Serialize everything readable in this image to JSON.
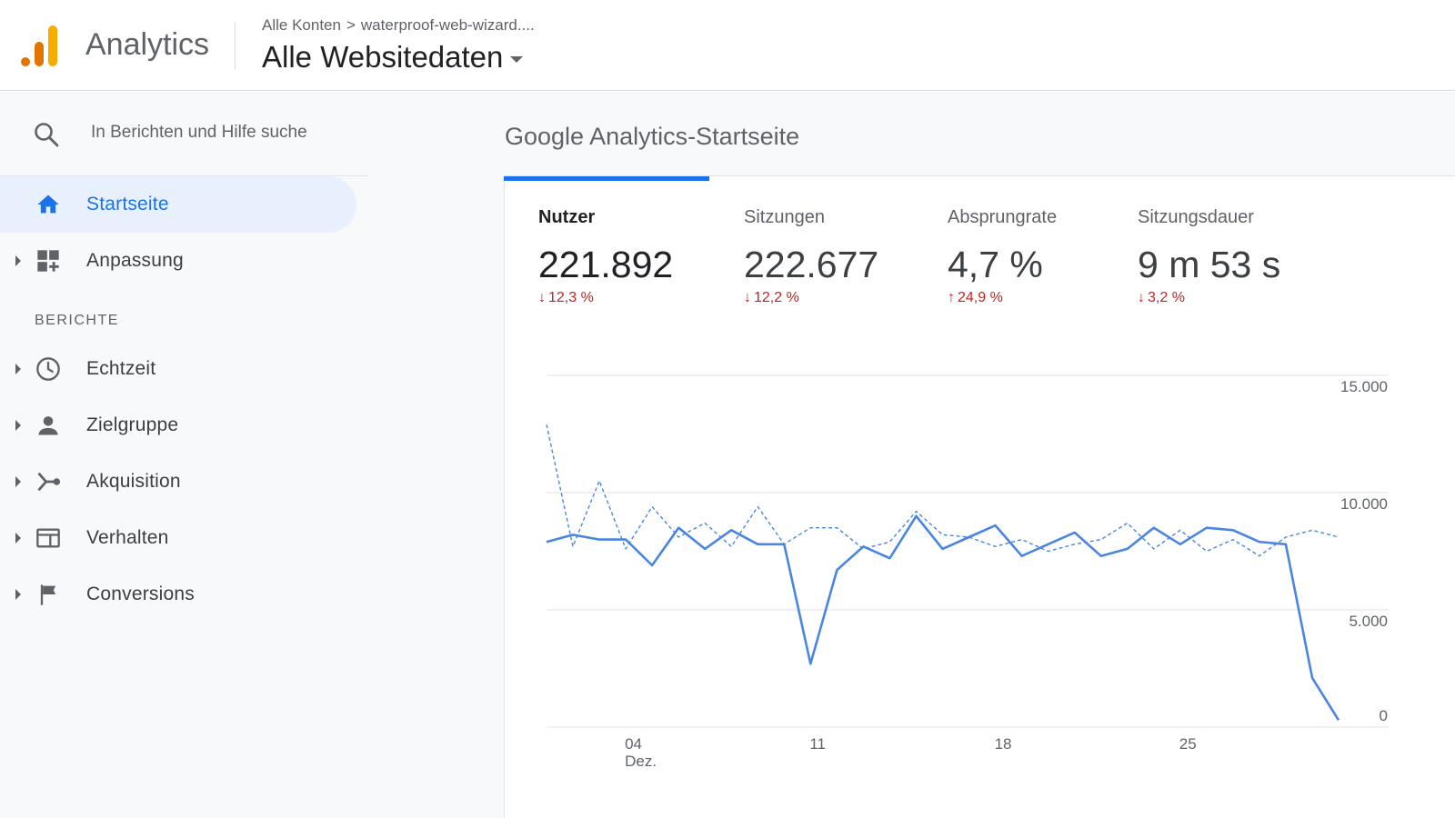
{
  "header": {
    "app_title": "Analytics",
    "breadcrumb": {
      "account": "Alle Konten",
      "separator": ">",
      "property": "waterproof-web-wizard...."
    },
    "view_title": "Alle Websitedaten"
  },
  "sidebar": {
    "search_placeholder": "In Berichten und Hilfe suche",
    "home": {
      "label": "Startseite",
      "icon": "home-icon"
    },
    "customization": {
      "label": "Anpassung",
      "icon": "dashboard-icon"
    },
    "reports_section": "BERICHTE",
    "reports": [
      {
        "label": "Echtzeit",
        "icon": "clock-icon"
      },
      {
        "label": "Zielgruppe",
        "icon": "person-icon"
      },
      {
        "label": "Akquisition",
        "icon": "acquisition-icon"
      },
      {
        "label": "Verhalten",
        "icon": "behavior-icon"
      },
      {
        "label": "Conversions",
        "icon": "flag-icon"
      }
    ]
  },
  "main": {
    "page_title": "Google Analytics-Startseite",
    "metrics": [
      {
        "label": "Nutzer",
        "value": "221.892",
        "delta": "12,3 %",
        "direction": "down"
      },
      {
        "label": "Sitzungen",
        "value": "222.677",
        "delta": "12,2 %",
        "direction": "down"
      },
      {
        "label": "Absprungrate",
        "value": "4,7 %",
        "delta": "24,9 %",
        "direction": "up"
      },
      {
        "label": "Sitzungsdauer",
        "value": "9 m 53 s",
        "delta": "3,2 %",
        "direction": "down"
      }
    ]
  },
  "colors": {
    "accent": "#1a73e8",
    "negative": "#c5221f",
    "line": "#4a86e0",
    "logo_orange": "#f9ab00",
    "logo_dark_orange": "#e37400"
  },
  "chart_data": {
    "type": "line",
    "ylim": [
      0,
      15000
    ],
    "y_ticks": [
      "15.000",
      "10.000",
      "5.000",
      "0"
    ],
    "y_tick_values": [
      15000,
      10000,
      5000,
      0
    ],
    "x_ticks": [
      {
        "index": 3,
        "label": "04",
        "sublabel": "Dez."
      },
      {
        "index": 10,
        "label": "11",
        "sublabel": ""
      },
      {
        "index": 17,
        "label": "18",
        "sublabel": ""
      },
      {
        "index": 24,
        "label": "25",
        "sublabel": ""
      }
    ],
    "x_count": 31,
    "grid": true,
    "series": [
      {
        "style": "solid",
        "values": [
          7900,
          8200,
          8000,
          8000,
          6900,
          8500,
          7600,
          8400,
          7800,
          7800,
          2700,
          6700,
          7700,
          7200,
          9000,
          7600,
          8100,
          8600,
          7300,
          7800,
          8300,
          7300,
          7600,
          8500,
          7800,
          8500,
          8400,
          7900,
          7800,
          2100,
          300
        ]
      },
      {
        "style": "dashed",
        "values": [
          12900,
          7700,
          10500,
          7600,
          9400,
          8100,
          8700,
          7700,
          9400,
          7800,
          8500,
          8500,
          7600,
          7900,
          9200,
          8200,
          8100,
          7700,
          8000,
          7500,
          7800,
          8000,
          8700,
          7600,
          8400,
          7500,
          8000,
          7300,
          8100,
          8400,
          8100
        ]
      }
    ]
  }
}
